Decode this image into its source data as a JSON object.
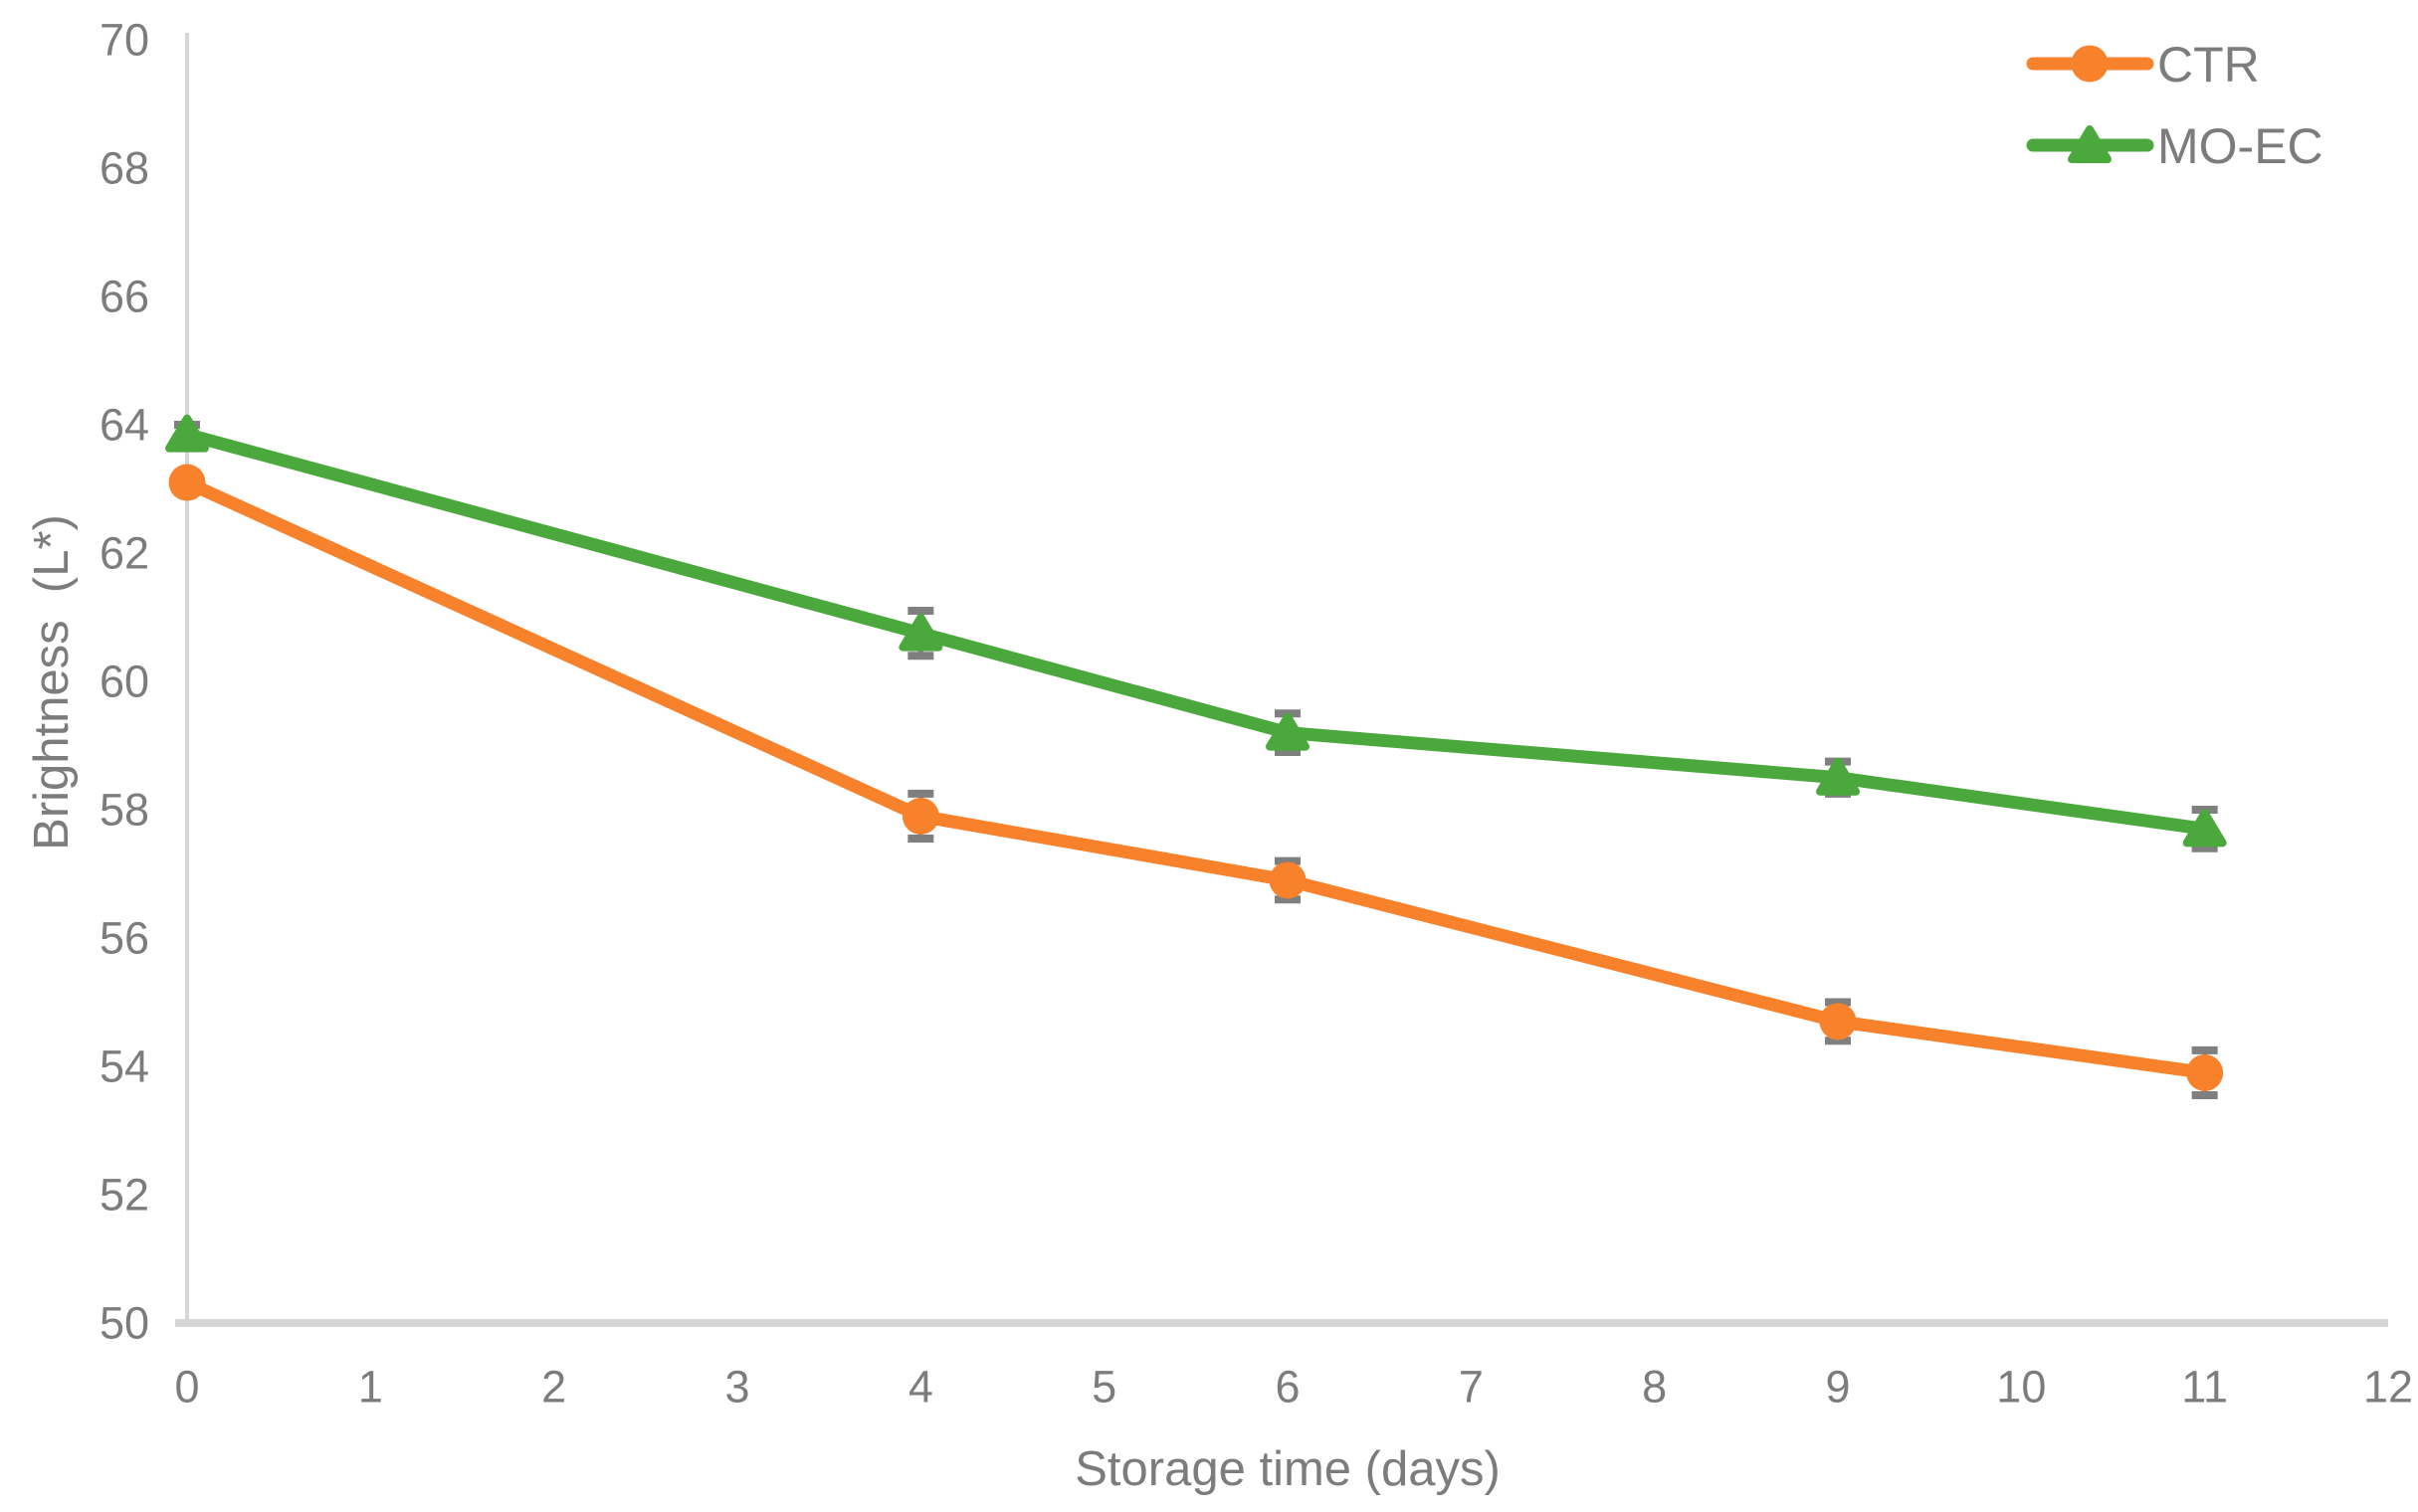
{
  "chart_data": {
    "type": "line",
    "title": "",
    "xlabel": "Storage time (days)",
    "ylabel": "Brightness  (L*)",
    "xlim": [
      0,
      12
    ],
    "ylim": [
      50,
      70
    ],
    "x_ticks": [
      0,
      1,
      2,
      3,
      4,
      5,
      6,
      7,
      8,
      9,
      10,
      11,
      12
    ],
    "y_ticks": [
      50,
      52,
      54,
      56,
      58,
      60,
      62,
      64,
      66,
      68,
      70
    ],
    "grid": false,
    "legend_position": "top-right",
    "x": [
      0,
      4,
      6,
      9,
      11
    ],
    "series": [
      {
        "name": "CTR",
        "marker": "circle",
        "color": "#F8812C",
        "values": [
          63.1,
          57.9,
          56.9,
          54.7,
          53.9
        ],
        "errors": [
          0.15,
          0.35,
          0.3,
          0.3,
          0.35
        ]
      },
      {
        "name": "MO-EC",
        "marker": "triangle",
        "color": "#4BA83D",
        "values": [
          63.85,
          60.75,
          59.2,
          58.5,
          57.7
        ],
        "errors": [
          0.15,
          0.35,
          0.3,
          0.25,
          0.3
        ]
      }
    ],
    "style": {
      "axis_color": "#D6D6D6",
      "error_color": "#7F7F7F",
      "text_color": "#7C7C7C",
      "background": "#FFFFFF"
    }
  }
}
